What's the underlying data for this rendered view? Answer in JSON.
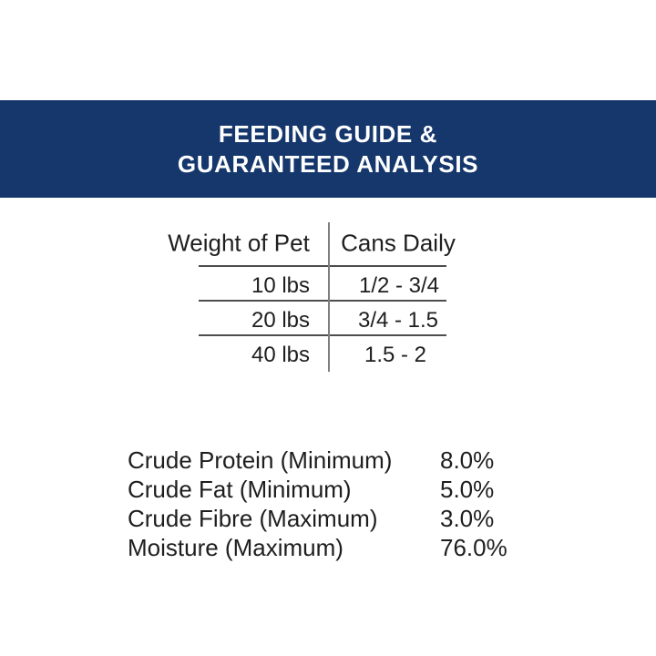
{
  "banner": {
    "line1": "FEEDING GUIDE &",
    "line2": "GUARANTEED ANALYSIS",
    "bg_color": "#15376c",
    "text_color": "#ffffff"
  },
  "feeding_table": {
    "columns": [
      "Weight of Pet",
      "Cans Daily"
    ],
    "rows": [
      {
        "weight": "10 lbs",
        "cans": "1/2 - 3/4"
      },
      {
        "weight": "20 lbs",
        "cans": "3/4 - 1.5"
      },
      {
        "weight": "40 lbs",
        "cans": "1.5 - 2"
      }
    ]
  },
  "guaranteed_analysis": {
    "items": [
      {
        "label": "Crude Protein (Minimum)",
        "value": "8.0%"
      },
      {
        "label": "Crude Fat (Minimum)",
        "value": "5.0%"
      },
      {
        "label": "Crude Fibre (Maximum)",
        "value": "3.0%"
      },
      {
        "label": "Moisture (Maximum)",
        "value": "76.0%"
      }
    ]
  }
}
